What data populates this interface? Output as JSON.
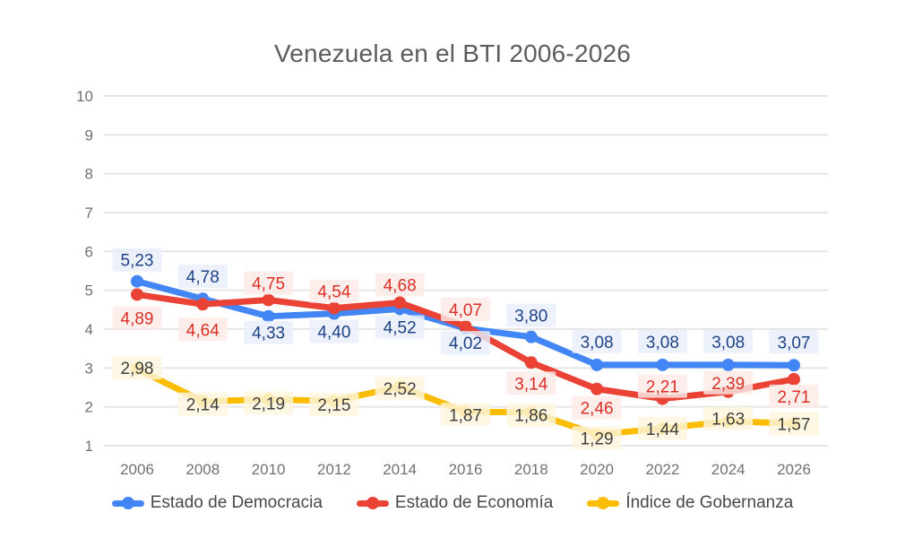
{
  "chart_data": {
    "type": "line",
    "title": "Venezuela en el BTI 2006-2026",
    "categories": [
      "2006",
      "2008",
      "2010",
      "2012",
      "2014",
      "2016",
      "2018",
      "2020",
      "2022",
      "2024",
      "2026"
    ],
    "series": [
      {
        "name": "Estado de Democracia",
        "color": "#4285f4",
        "label_color": "#1f4287",
        "label_bg": "#e8eefb",
        "values": [
          5.23,
          4.78,
          4.33,
          4.4,
          4.52,
          4.02,
          3.8,
          3.08,
          3.08,
          3.08,
          3.07
        ]
      },
      {
        "name": "Estado de Economía",
        "color": "#ea4335",
        "label_color": "#d93025",
        "label_bg": "#fce9e7",
        "values": [
          4.89,
          4.64,
          4.75,
          4.54,
          4.68,
          4.07,
          3.14,
          2.46,
          2.21,
          2.39,
          2.71
        ]
      },
      {
        "name": "Índice de Gobernanza",
        "color": "#fbbc04",
        "label_color": "#3f3f3f",
        "label_bg": "#fdf5de",
        "values": [
          2.98,
          2.14,
          2.19,
          2.15,
          2.52,
          1.87,
          1.86,
          1.29,
          1.44,
          1.63,
          1.57
        ]
      }
    ],
    "ylim": [
      1,
      10
    ],
    "yticks": [
      1,
      2,
      3,
      4,
      5,
      6,
      7,
      8,
      9,
      10
    ],
    "decimal_separator": ",",
    "grid": "horizontal",
    "legend_position": "bottom",
    "data_labels": true,
    "colors": {
      "gridline": "#e6e6e6",
      "tick_label": "#717171",
      "title": "#5c5c5c",
      "legend_text": "#484848",
      "background": "#ffffff"
    }
  }
}
